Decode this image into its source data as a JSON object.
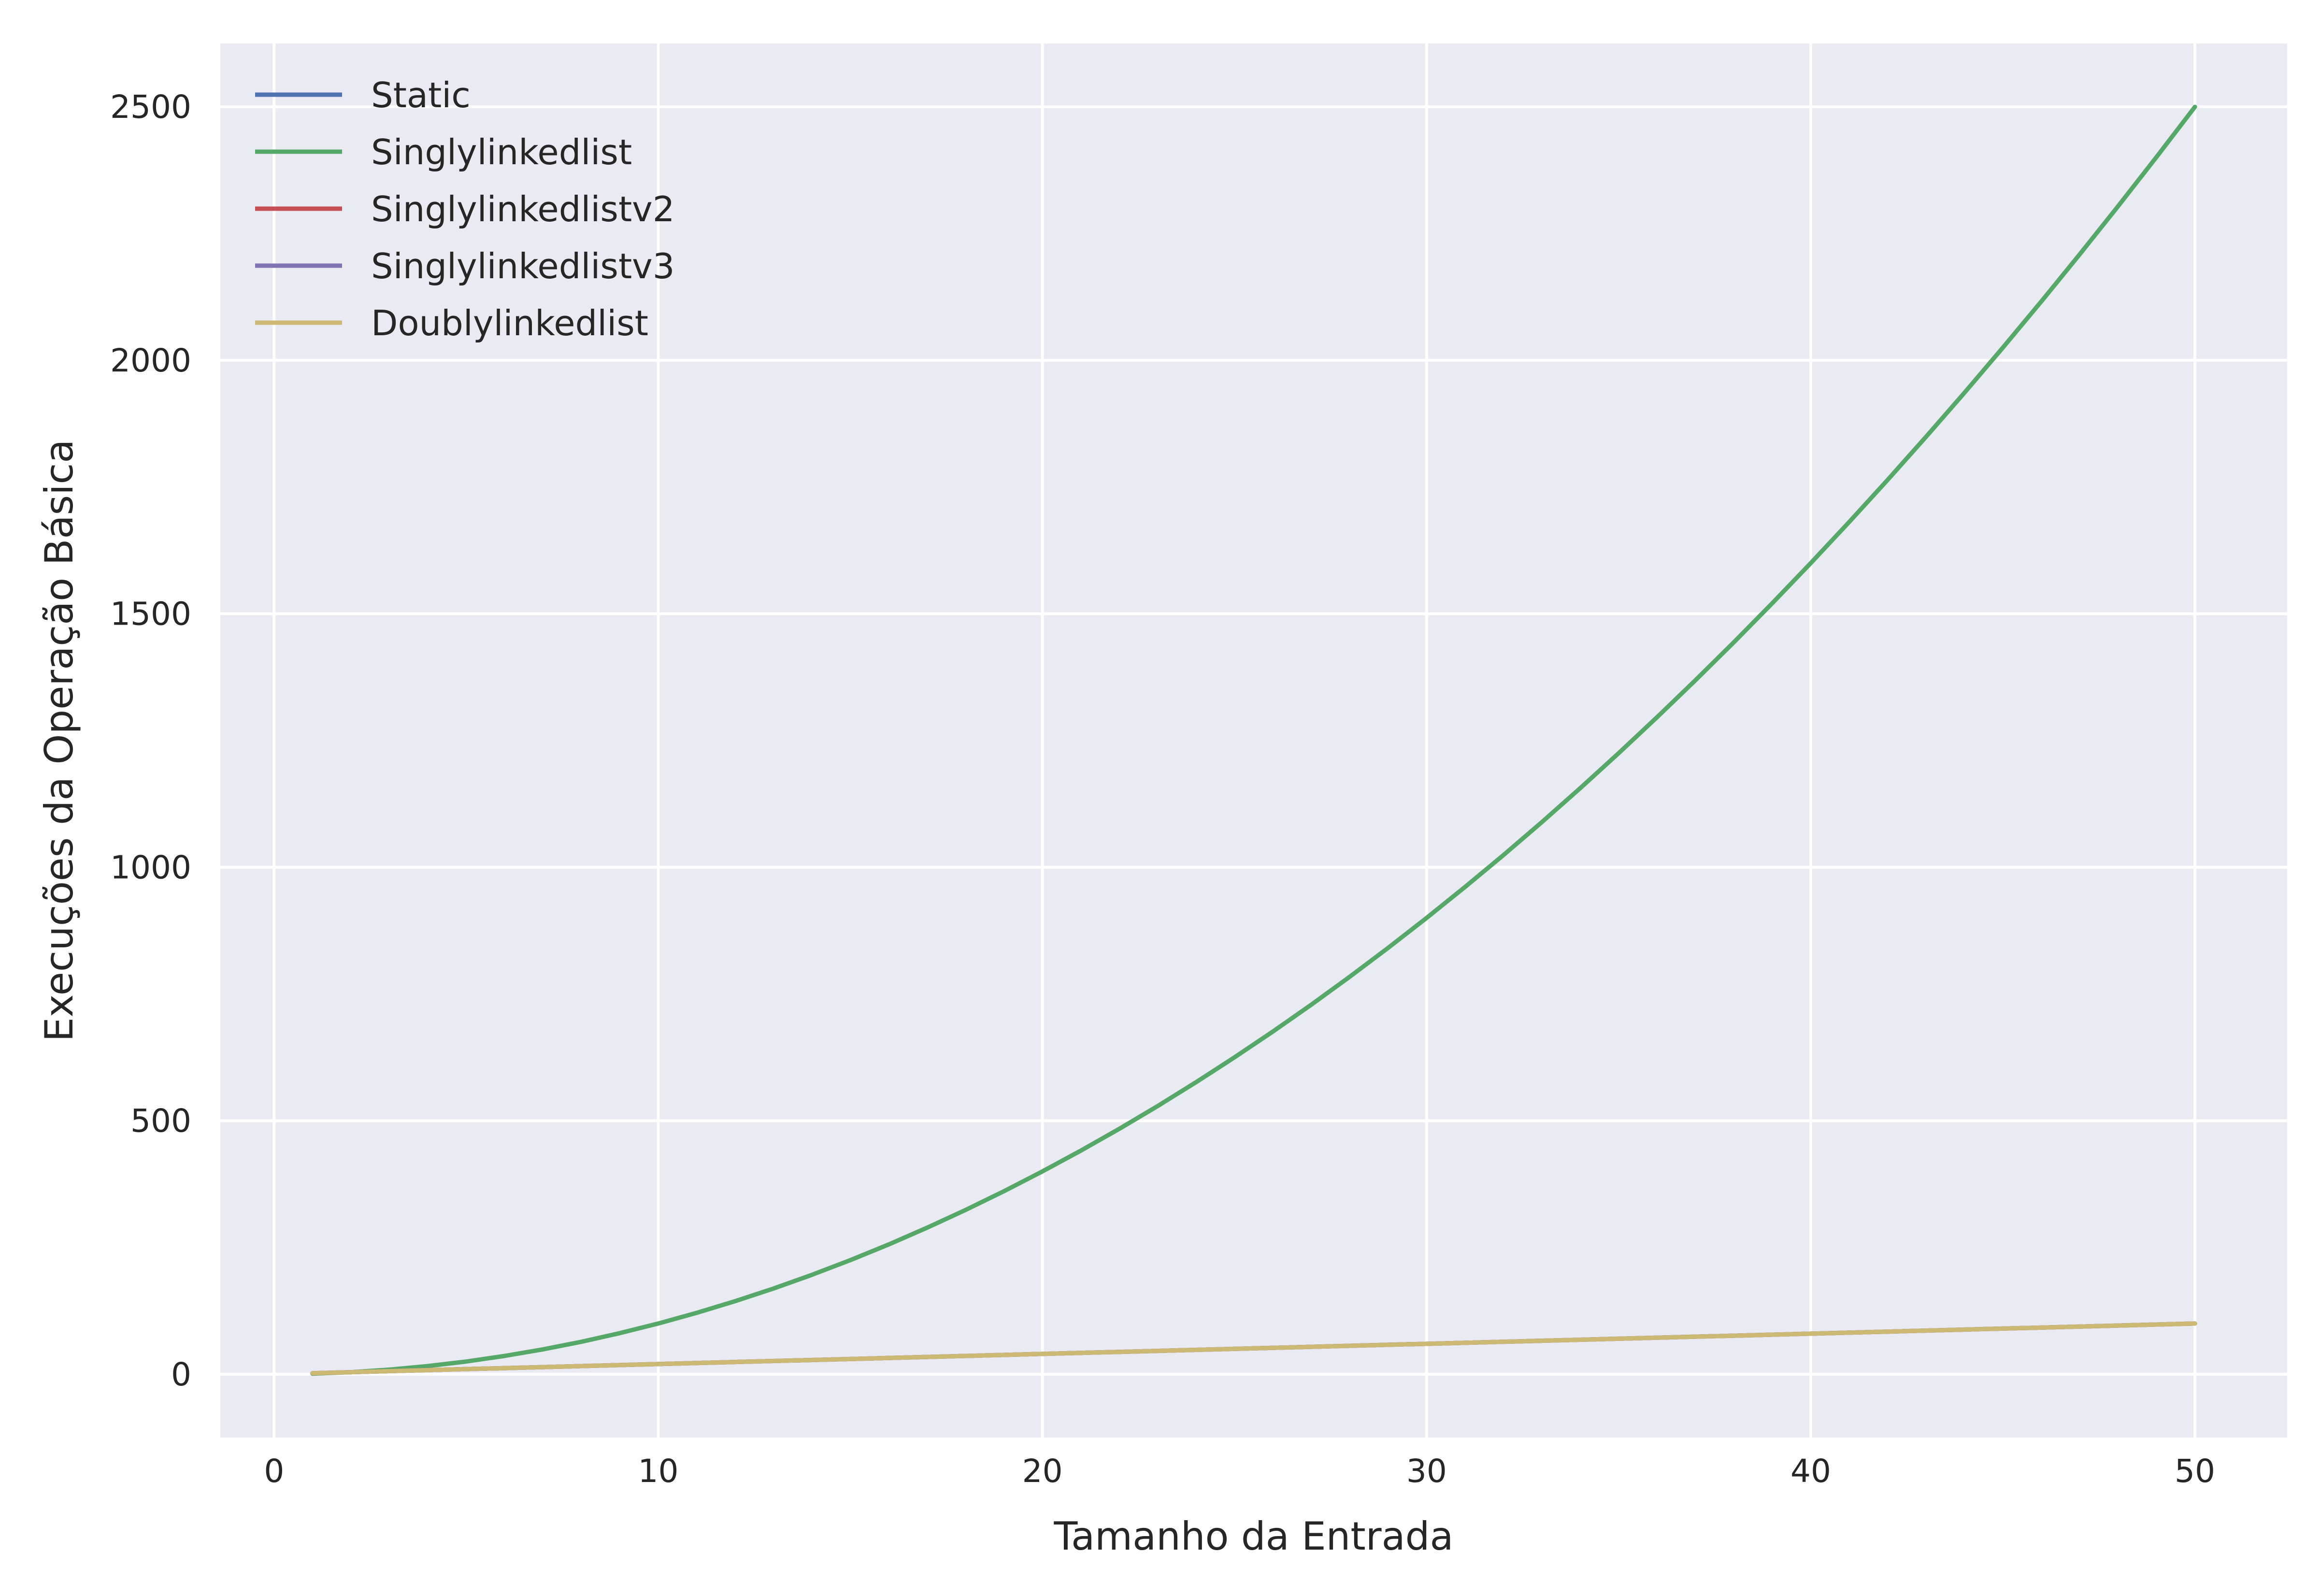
{
  "chart_data": {
    "type": "line",
    "title": "",
    "xlabel": "Tamanho da Entrada",
    "ylabel": "Execuções da Operação Básica",
    "xlim": [
      -1.4,
      52.4
    ],
    "ylim": [
      -125,
      2625
    ],
    "xticks": [
      0,
      10,
      20,
      30,
      40,
      50
    ],
    "yticks": [
      0,
      500,
      1000,
      1500,
      2000,
      2500
    ],
    "grid": true,
    "legend_position": "top-left",
    "background": "#eaeaf2",
    "series": [
      {
        "name": "Static",
        "color": "#4c72b0",
        "formula": "linear",
        "x_range": [
          1,
          50
        ],
        "y_range": [
          2,
          100
        ]
      },
      {
        "name": "Singlylinkedlist",
        "color": "#55a868",
        "formula": "quadratic",
        "x_range": [
          1,
          50
        ],
        "y_range": [
          1,
          2500
        ]
      },
      {
        "name": "Singlylinkedlistv2",
        "color": "#c44e52",
        "formula": "linear",
        "x_range": [
          1,
          50
        ],
        "y_range": [
          2,
          100
        ]
      },
      {
        "name": "Singlylinkedlistv3",
        "color": "#8172b3",
        "formula": "linear",
        "x_range": [
          1,
          50
        ],
        "y_range": [
          2,
          100
        ]
      },
      {
        "name": "Doublylinkedlist",
        "color": "#ccb974",
        "formula": "linear",
        "x_range": [
          1,
          50
        ],
        "y_range": [
          2,
          100
        ]
      }
    ]
  }
}
